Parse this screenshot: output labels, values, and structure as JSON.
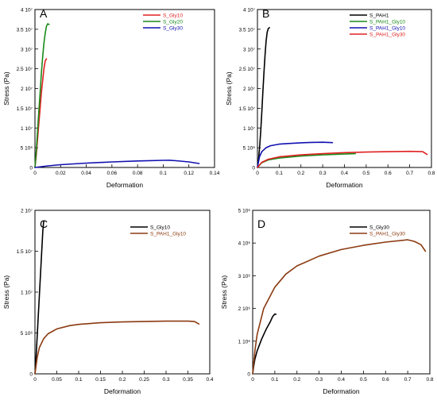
{
  "chart_data": [
    {
      "type": "line",
      "panel": "A",
      "xlabel": "Deformation",
      "ylabel": "Stress (Pa)",
      "xlim": [
        0,
        0.14
      ],
      "ylim": [
        0,
        40000000
      ],
      "xticks": [
        0,
        0.02,
        0.04,
        0.06,
        0.08,
        0.1,
        0.12,
        0.14
      ],
      "xtick_labels": [
        "0",
        "0.02",
        "0.04",
        "0.06",
        "0.08",
        "0.1",
        "0.12",
        "0.14"
      ],
      "yticks": [
        0,
        5000000,
        10000000,
        15000000,
        20000000,
        25000000,
        30000000,
        35000000,
        40000000
      ],
      "ytick_labels": [
        "0",
        "5 10⁶",
        "1 10⁷",
        "1.5 10⁷",
        "2 10⁷",
        "2.5 10⁷",
        "3 10⁷",
        "3.5 10⁷",
        "4 10⁷"
      ],
      "legend_position": "top-right",
      "series": [
        {
          "name": "S_Gly10",
          "color": "#e02020",
          "x": [
            0,
            0.001,
            0.002,
            0.003,
            0.004,
            0.005,
            0.006,
            0.007,
            0.008,
            0.009
          ],
          "y": [
            0,
            3000000,
            7000000,
            11000000,
            15000000,
            19000000,
            22000000,
            25000000,
            27000000,
            27500000
          ]
        },
        {
          "name": "S_Gly20",
          "color": "#1a8a1a",
          "x": [
            0,
            0.001,
            0.002,
            0.003,
            0.004,
            0.005,
            0.006,
            0.007,
            0.008,
            0.009,
            0.01,
            0.011
          ],
          "y": [
            0,
            4000000,
            9000000,
            14000000,
            19000000,
            24000000,
            28000000,
            31500000,
            34000000,
            35800000,
            36400000,
            36200000
          ]
        },
        {
          "name": "S_Gly30",
          "color": "#1010b0",
          "x": [
            0,
            0.01,
            0.02,
            0.04,
            0.06,
            0.08,
            0.1,
            0.105,
            0.11,
            0.12,
            0.128
          ],
          "y": [
            0,
            400000,
            700000,
            1100000,
            1400000,
            1650000,
            1800000,
            1820000,
            1700000,
            1400000,
            1000000
          ]
        }
      ]
    },
    {
      "type": "line",
      "panel": "B",
      "xlabel": "Deformation",
      "ylabel": "Stress (Pa)",
      "xlim": [
        0,
        0.8
      ],
      "ylim": [
        0,
        40000000
      ],
      "xticks": [
        0,
        0.1,
        0.2,
        0.3,
        0.4,
        0.5,
        0.6,
        0.7,
        0.8
      ],
      "xtick_labels": [
        "0",
        "0.1",
        "0.2",
        "0.3",
        "0.4",
        "0.5",
        "0.6",
        "0.7",
        "0.8"
      ],
      "yticks": [
        0,
        5000000,
        10000000,
        15000000,
        20000000,
        25000000,
        30000000,
        35000000,
        40000000
      ],
      "ytick_labels": [
        "0",
        "5 10⁶",
        "1 10⁷",
        "1.5 10⁷",
        "2 10⁷",
        "2.5 10⁷",
        "3 10⁷",
        "3.5 10⁷",
        "4 10⁷"
      ],
      "legend_position": "top-right",
      "series": [
        {
          "name": "S_PAH1",
          "color": "#000000",
          "x": [
            0,
            0.005,
            0.01,
            0.015,
            0.02,
            0.025,
            0.03,
            0.035,
            0.04,
            0.045,
            0.05,
            0.055
          ],
          "y": [
            0,
            2000000,
            5000000,
            9000000,
            14000000,
            19000000,
            24000000,
            28500000,
            32000000,
            34300000,
            35200000,
            35400000
          ]
        },
        {
          "name": "S_PAH1_Gly10",
          "color": "#1a8a1a",
          "x": [
            0,
            0.02,
            0.05,
            0.1,
            0.2,
            0.3,
            0.4,
            0.45
          ],
          "y": [
            0,
            1200000,
            1900000,
            2400000,
            2900000,
            3200000,
            3400000,
            3500000
          ]
        },
        {
          "name": "S_PAH1_Gly10",
          "color": "#1010b0",
          "x": [
            0,
            0.005,
            0.01,
            0.02,
            0.04,
            0.06,
            0.1,
            0.15,
            0.2,
            0.25,
            0.3,
            0.345
          ],
          "y": [
            0,
            1500000,
            2800000,
            4000000,
            5000000,
            5500000,
            5900000,
            6100000,
            6250000,
            6350000,
            6400000,
            6300000
          ]
        },
        {
          "name": "S_PAH1_Gly30",
          "color": "#e02020",
          "x": [
            0,
            0.02,
            0.05,
            0.1,
            0.2,
            0.3,
            0.4,
            0.5,
            0.6,
            0.7,
            0.76,
            0.78
          ],
          "y": [
            0,
            1300000,
            2100000,
            2700000,
            3200000,
            3500000,
            3750000,
            3900000,
            4000000,
            4080000,
            4000000,
            3300000
          ]
        }
      ]
    },
    {
      "type": "line",
      "panel": "C",
      "xlabel": "Deformation",
      "ylabel": "Stress (Pa)",
      "xlim": [
        0,
        0.4
      ],
      "ylim": [
        0,
        20000000
      ],
      "xticks": [
        0,
        0.05,
        0.1,
        0.15,
        0.2,
        0.25,
        0.3,
        0.35,
        0.4
      ],
      "xtick_labels": [
        "0",
        "0.05",
        "0.1",
        "0.15",
        "0.2",
        "0.25",
        "0.3",
        "0.35",
        "0.4"
      ],
      "yticks": [
        0,
        5000000,
        10000000,
        15000000,
        20000000
      ],
      "ytick_labels": [
        "0",
        "5 10⁶",
        "1 10⁷",
        "1.5 10⁷",
        "2 10⁷"
      ],
      "legend_position": "top-right",
      "series": [
        {
          "name": "S_Gly10",
          "color": "#000000",
          "x": [
            0,
            0.002,
            0.004,
            0.006,
            0.008,
            0.01,
            0.012,
            0.014,
            0.016,
            0.018,
            0.02
          ],
          "y": [
            0,
            1500000,
            3500000,
            5500000,
            7500000,
            9500000,
            11500000,
            13500000,
            15500000,
            17500000,
            18700000
          ]
        },
        {
          "name": "S_PAH1_Gly10",
          "color": "#8b3a10",
          "x": [
            0,
            0.005,
            0.01,
            0.02,
            0.03,
            0.05,
            0.08,
            0.1,
            0.15,
            0.2,
            0.25,
            0.3,
            0.35,
            0.365,
            0.375
          ],
          "y": [
            0,
            2000000,
            3200000,
            4300000,
            4900000,
            5500000,
            5900000,
            6050000,
            6250000,
            6350000,
            6400000,
            6450000,
            6450000,
            6400000,
            6100000
          ]
        }
      ]
    },
    {
      "type": "line",
      "panel": "D",
      "xlabel": "Deformation",
      "ylabel": "Stress (Pa)",
      "xlim": [
        0,
        0.8
      ],
      "ylim": [
        0,
        5000000
      ],
      "xticks": [
        0,
        0.1,
        0.2,
        0.3,
        0.4,
        0.5,
        0.6,
        0.7,
        0.8
      ],
      "xtick_labels": [
        "0",
        "0.1",
        "0.2",
        "0.3",
        "0.4",
        "0.5",
        "0.6",
        "0.7",
        "0.8"
      ],
      "yticks": [
        0,
        1000000,
        2000000,
        3000000,
        4000000,
        5000000
      ],
      "ytick_labels": [
        "0",
        "1 10⁶",
        "2 10⁶",
        "3 10⁶",
        "4 10⁶",
        "5 10⁶"
      ],
      "legend_position": "top-right",
      "series": [
        {
          "name": "S_Gly30",
          "color": "#000000",
          "x": [
            0,
            0.005,
            0.01,
            0.02,
            0.04,
            0.06,
            0.08,
            0.09,
            0.1,
            0.105
          ],
          "y": [
            0,
            250000,
            450000,
            700000,
            1050000,
            1350000,
            1600000,
            1750000,
            1830000,
            1820000
          ]
        },
        {
          "name": "S_PAH1_Gly30",
          "color": "#8b3a10",
          "x": [
            0,
            0.01,
            0.02,
            0.05,
            0.1,
            0.15,
            0.2,
            0.3,
            0.4,
            0.5,
            0.6,
            0.7,
            0.73,
            0.76,
            0.78
          ],
          "y": [
            0,
            700000,
            1200000,
            2000000,
            2650000,
            3050000,
            3300000,
            3600000,
            3800000,
            3930000,
            4030000,
            4100000,
            4050000,
            3950000,
            3750000
          ]
        }
      ]
    }
  ]
}
